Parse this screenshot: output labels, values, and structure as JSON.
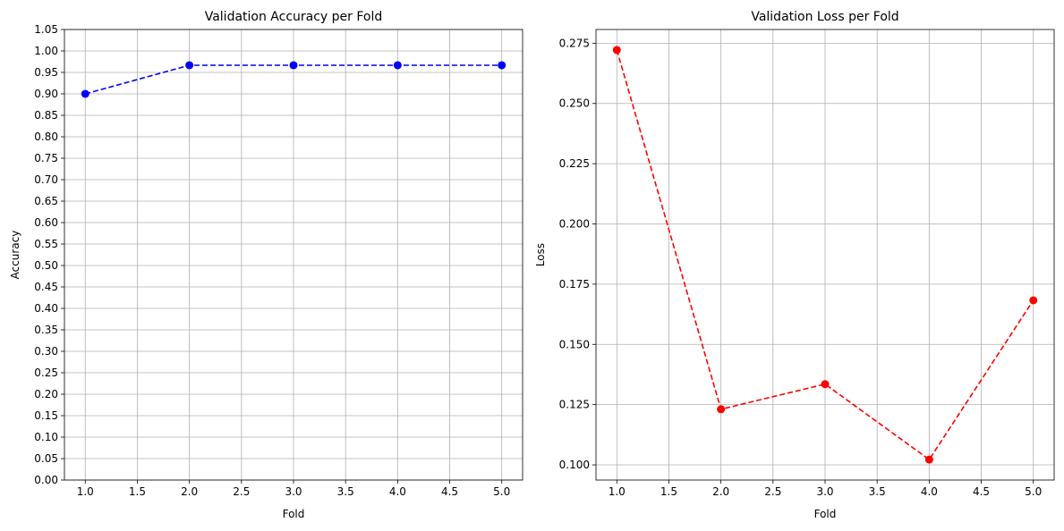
{
  "chart_data": [
    {
      "type": "line",
      "title": "Validation Accuracy per Fold",
      "xlabel": "Fold",
      "ylabel": "Accuracy",
      "x": [
        1,
        2,
        3,
        4,
        5
      ],
      "series": [
        {
          "values": [
            0.9,
            0.9667,
            0.9667,
            0.9667,
            0.9667
          ],
          "color": "#0000ff",
          "line_style": "dashed",
          "marker": "circle"
        }
      ],
      "xlim": [
        0.8,
        5.2
      ],
      "ylim": [
        0.0,
        1.05
      ],
      "xticks": [
        "1.0",
        "1.5",
        "2.0",
        "2.5",
        "3.0",
        "3.5",
        "4.0",
        "4.5",
        "5.0"
      ],
      "yticks": [
        "0.00",
        "0.05",
        "0.10",
        "0.15",
        "0.20",
        "0.25",
        "0.30",
        "0.35",
        "0.40",
        "0.45",
        "0.50",
        "0.55",
        "0.60",
        "0.65",
        "0.70",
        "0.75",
        "0.80",
        "0.85",
        "0.90",
        "0.95",
        "1.00",
        "1.05"
      ],
      "grid": true
    },
    {
      "type": "line",
      "title": "Validation Loss per Fold",
      "xlabel": "Fold",
      "ylabel": "Loss",
      "x": [
        1,
        2,
        3,
        4,
        5
      ],
      "series": [
        {
          "values": [
            0.2722,
            0.1231,
            0.1335,
            0.1022,
            0.1683
          ],
          "color": "#ff0000",
          "line_style": "dashed",
          "marker": "circle"
        }
      ],
      "xlim": [
        0.8,
        5.2
      ],
      "ylim": [
        0.0937,
        0.2807
      ],
      "xticks": [
        "1.0",
        "1.5",
        "2.0",
        "2.5",
        "3.0",
        "3.5",
        "4.0",
        "4.5",
        "5.0"
      ],
      "yticks": [
        "0.100",
        "0.125",
        "0.150",
        "0.175",
        "0.200",
        "0.225",
        "0.250",
        "0.275"
      ],
      "grid": true
    }
  ]
}
